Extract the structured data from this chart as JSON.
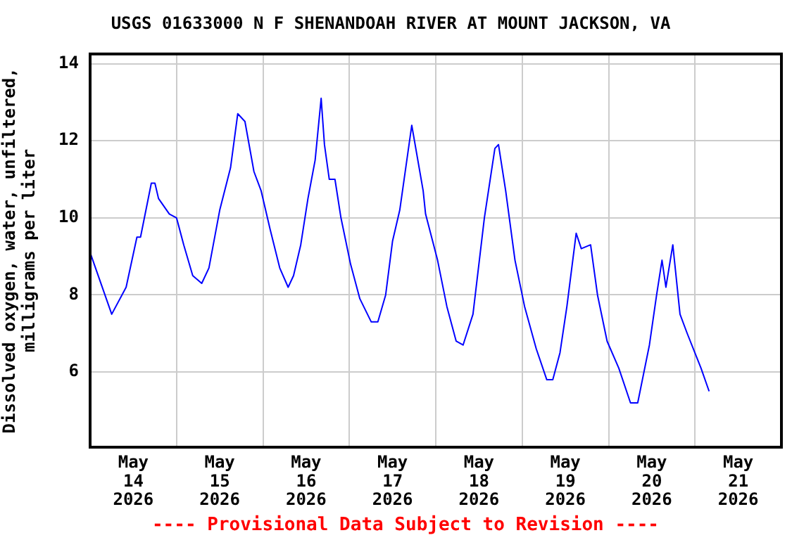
{
  "chart_data": {
    "type": "line",
    "title": "USGS 01633000 N F SHENANDOAH RIVER AT MOUNT JACKSON, VA",
    "ylabel": "Dissolved oxygen, water, unfiltered, milligrams per liter",
    "annotations": [
      "---- Provisional Data Subject to Revision ----"
    ],
    "x": [
      "2026-05-14T00:00",
      "2026-05-14T06:00",
      "2026-05-14T10:00",
      "2026-05-14T13:00",
      "2026-05-14T14:00",
      "2026-05-14T17:00",
      "2026-05-14T18:00",
      "2026-05-14T19:00",
      "2026-05-14T22:00",
      "2026-05-15T00:00",
      "2026-05-15T02:00",
      "2026-05-15T04:30",
      "2026-05-15T07:00",
      "2026-05-15T09:00",
      "2026-05-15T12:00",
      "2026-05-15T15:00",
      "2026-05-15T17:00",
      "2026-05-15T19:00",
      "2026-05-15T21:30",
      "2026-05-15T23:30",
      "2026-05-16T02:00",
      "2026-05-16T04:40",
      "2026-05-16T07:00",
      "2026-05-16T08:30",
      "2026-05-16T10:30",
      "2026-05-16T12:30",
      "2026-05-16T14:30",
      "2026-05-16T16:10",
      "2026-05-16T17:05",
      "2026-05-16T18:25",
      "2026-05-16T20:00",
      "2026-05-16T21:40",
      "2026-05-17T00:20",
      "2026-05-17T02:55",
      "2026-05-17T06:05",
      "2026-05-17T07:55",
      "2026-05-17T10:05",
      "2026-05-17T12:00",
      "2026-05-17T14:00",
      "2026-05-17T17:20",
      "2026-05-17T20:30",
      "2026-05-17T21:10",
      "2026-05-18T00:30",
      "2026-05-18T03:05",
      "2026-05-18T05:40",
      "2026-05-18T07:35",
      "2026-05-18T10:20",
      "2026-05-18T13:30",
      "2026-05-18T16:25",
      "2026-05-18T17:25",
      "2026-05-18T19:25",
      "2026-05-18T22:00",
      "2026-05-19T00:40",
      "2026-05-19T03:55",
      "2026-05-19T06:50",
      "2026-05-19T08:30",
      "2026-05-19T10:30",
      "2026-05-19T12:25",
      "2026-05-19T15:00",
      "2026-05-19T16:25",
      "2026-05-19T19:00",
      "2026-05-19T20:55",
      "2026-05-19T23:35",
      "2026-05-20T02:50",
      "2026-05-20T06:05",
      "2026-05-20T08:05",
      "2026-05-20T11:20",
      "2026-05-20T13:20",
      "2026-05-20T14:50",
      "2026-05-20T15:55",
      "2026-05-20T17:50",
      "2026-05-20T19:50",
      "2026-05-20T21:50",
      "2026-05-21T01:40",
      "2026-05-21T03:55"
    ],
    "series": [
      {
        "color": "#0000ff",
        "values": [
          9.1,
          7.5,
          8.2,
          9.5,
          9.5,
          10.9,
          10.9,
          10.5,
          10.1,
          10.0,
          9.3,
          8.5,
          8.3,
          8.7,
          10.2,
          11.3,
          12.7,
          12.5,
          11.2,
          10.7,
          9.7,
          8.7,
          8.2,
          8.5,
          9.3,
          10.5,
          11.5,
          13.1,
          11.9,
          11.0,
          11.0,
          10.0,
          8.8,
          7.9,
          7.3,
          7.3,
          8.0,
          9.4,
          10.2,
          12.4,
          10.7,
          10.1,
          8.9,
          7.7,
          6.8,
          6.7,
          7.5,
          10.0,
          11.8,
          11.9,
          10.7,
          8.9,
          7.7,
          6.6,
          5.8,
          5.8,
          6.5,
          7.7,
          9.6,
          9.2,
          9.3,
          8.0,
          6.8,
          6.1,
          5.2,
          5.2,
          6.7,
          8.0,
          8.9,
          8.2,
          9.3,
          7.5,
          7.0,
          6.1,
          5.5
        ]
      }
    ],
    "xlim": [
      "2026-05-14T00:00",
      "2026-05-22T00:00"
    ],
    "xticks": [
      {
        "value": "2026-05-14T12:00",
        "label": "May 14 2026"
      },
      {
        "value": "2026-05-15T00:00",
        "label": null
      },
      {
        "value": "2026-05-15T12:00",
        "label": "May 15 2026"
      },
      {
        "value": "2026-05-16T00:00",
        "label": null
      },
      {
        "value": "2026-05-16T12:00",
        "label": "May 16 2026"
      },
      {
        "value": "2026-05-17T00:00",
        "label": null
      },
      {
        "value": "2026-05-17T12:00",
        "label": "May 17 2026"
      },
      {
        "value": "2026-05-18T00:00",
        "label": null
      },
      {
        "value": "2026-05-18T12:00",
        "label": "May 18 2026"
      },
      {
        "value": "2026-05-19T00:00",
        "label": null
      },
      {
        "value": "2026-05-19T12:00",
        "label": "May 19 2026"
      },
      {
        "value": "2026-05-20T00:00",
        "label": null
      },
      {
        "value": "2026-05-20T12:00",
        "label": "May 20 2026"
      },
      {
        "value": "2026-05-21T00:00",
        "label": null
      },
      {
        "value": "2026-05-21T12:00",
        "label": "May 21 2026"
      }
    ],
    "ylim": [
      4.05,
      14.25
    ],
    "yticks": [
      6,
      8,
      10,
      12,
      14
    ],
    "grid": true,
    "marker": "none",
    "line_style": "solid"
  }
}
